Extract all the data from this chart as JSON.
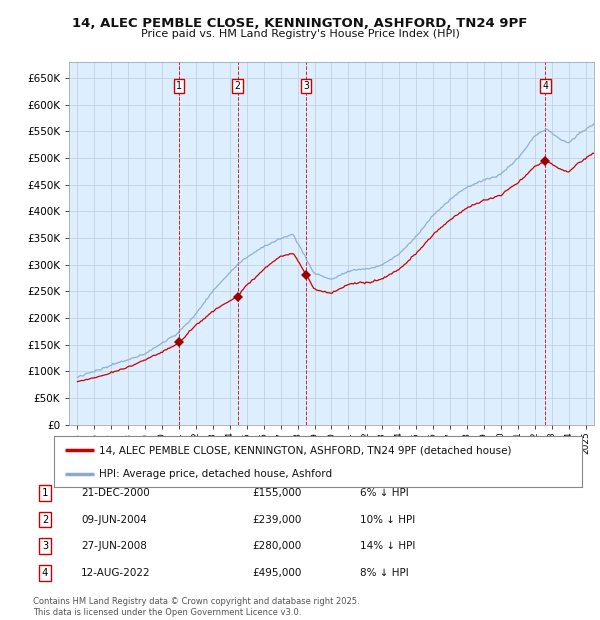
{
  "title": "14, ALEC PEMBLE CLOSE, KENNINGTON, ASHFORD, TN24 9PF",
  "subtitle": "Price paid vs. HM Land Registry's House Price Index (HPI)",
  "ylim": [
    0,
    680000
  ],
  "yticks": [
    0,
    50000,
    100000,
    150000,
    200000,
    250000,
    300000,
    350000,
    400000,
    450000,
    500000,
    550000,
    600000,
    650000
  ],
  "ytick_labels": [
    "£0",
    "£50K",
    "£100K",
    "£150K",
    "£200K",
    "£250K",
    "£300K",
    "£350K",
    "£400K",
    "£450K",
    "£500K",
    "£550K",
    "£600K",
    "£650K"
  ],
  "xlim_start": 1994.5,
  "xlim_end": 2025.5,
  "background_color": "#ddeeff",
  "grid_color": "#c8d8e8",
  "line_color_red": "#cc0000",
  "line_color_blue": "#88aacc",
  "transactions": [
    {
      "num": 1,
      "date": "21-DEC-2000",
      "price": 155000,
      "pct": "6%",
      "direction": "↓",
      "x_year": 2001.0
    },
    {
      "num": 2,
      "date": "09-JUN-2004",
      "price": 239000,
      "pct": "10%",
      "direction": "↓",
      "x_year": 2004.45
    },
    {
      "num": 3,
      "date": "27-JUN-2008",
      "price": 280000,
      "pct": "14%",
      "direction": "↓",
      "x_year": 2008.5
    },
    {
      "num": 4,
      "date": "12-AUG-2022",
      "price": 495000,
      "pct": "8%",
      "direction": "↓",
      "x_year": 2022.62
    }
  ],
  "legend_red_label": "14, ALEC PEMBLE CLOSE, KENNINGTON, ASHFORD, TN24 9PF (detached house)",
  "legend_blue_label": "HPI: Average price, detached house, Ashford",
  "footer1": "Contains HM Land Registry data © Crown copyright and database right 2025.",
  "footer2": "This data is licensed under the Open Government Licence v3.0."
}
